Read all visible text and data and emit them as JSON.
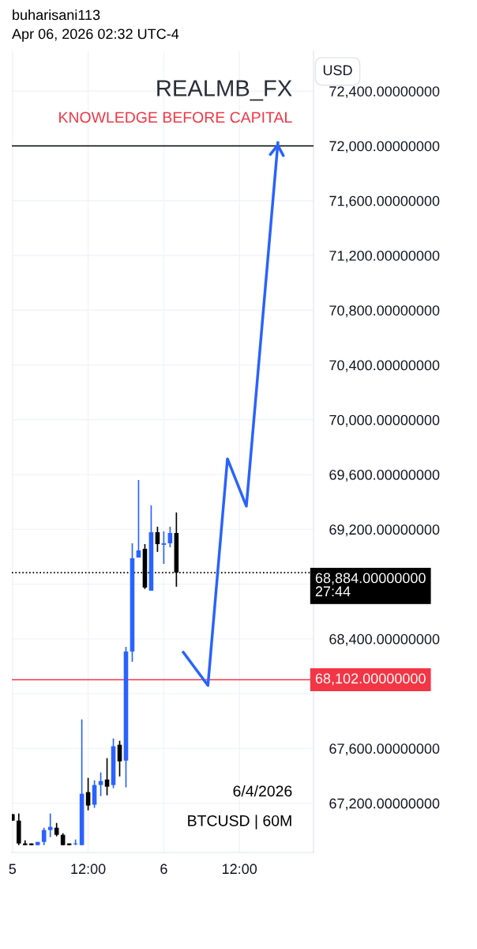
{
  "chart_data": {
    "type": "candlestick",
    "title": "REALMB_FX",
    "subtitle": "KNOWLEDGE BEFORE CAPITAL",
    "ylabel": "USD",
    "annotations": [
      "buharisani113",
      "Apr 06, 2026 02:32 UTC-4",
      "6/4/2026",
      "BTCUSD | 60M"
    ],
    "x": [
      "2026-04-05T00:00",
      "2026-04-05T01:00",
      "2026-04-05T02:00",
      "2026-04-05T03:00",
      "2026-04-05T04:00",
      "2026-04-05T05:00",
      "2026-04-05T06:00",
      "2026-04-05T07:00",
      "2026-04-05T08:00",
      "2026-04-05T09:00",
      "2026-04-05T10:00",
      "2026-04-05T11:00",
      "2026-04-05T12:00",
      "2026-04-05T13:00",
      "2026-04-05T14:00",
      "2026-04-05T15:00",
      "2026-04-05T16:00",
      "2026-04-05T17:00",
      "2026-04-05T18:00",
      "2026-04-05T19:00",
      "2026-04-05T20:00",
      "2026-04-05T21:00",
      "2026-04-05T22:00",
      "2026-04-05T23:00",
      "2026-04-06T00:00",
      "2026-04-06T01:00",
      "2026-04-06T02:00"
    ],
    "ohlc": [
      [
        67120,
        67120,
        67073,
        67073
      ],
      [
        67073,
        67125,
        66894,
        66906
      ],
      [
        66906,
        66929,
        66894,
        66894
      ],
      [
        66894,
        66906,
        66894,
        66906
      ],
      [
        66894,
        66917,
        66894,
        66917
      ],
      [
        66917,
        67021,
        66894,
        67004
      ],
      [
        67004,
        67125,
        66952,
        67027
      ],
      [
        67021,
        67056,
        66958,
        66969
      ],
      [
        66969,
        66981,
        66894,
        66894
      ],
      [
        66894,
        66906,
        66894,
        66906
      ],
      [
        66900,
        66935,
        66894,
        66906
      ],
      [
        66894,
        67812,
        66894,
        67269
      ],
      [
        67281,
        67385,
        67148,
        67183
      ],
      [
        67189,
        67367,
        67166,
        67333
      ],
      [
        67333,
        67425,
        67252,
        67362
      ],
      [
        67373,
        67529,
        67258,
        67321
      ],
      [
        67333,
        67673,
        67310,
        67616
      ],
      [
        67627,
        67656,
        67396,
        67506
      ],
      [
        67512,
        68342,
        67316,
        68308
      ],
      [
        68308,
        69098,
        68233,
        68989
      ],
      [
        68994,
        69560,
        68994,
        69046
      ],
      [
        69058,
        69092,
        68764,
        68775
      ],
      [
        68752,
        69375,
        68752,
        69179
      ],
      [
        69179,
        69219,
        69035,
        69092
      ],
      [
        69087,
        69185,
        68948,
        69098
      ],
      [
        69098,
        69219,
        69069,
        69173
      ],
      [
        69173,
        69323,
        68781,
        68884
      ]
    ],
    "colors": [
      "#000000",
      "#000000",
      "#000000",
      "#000000",
      "#2962ff",
      "#2962ff",
      "#2962ff",
      "#000000",
      "#000000",
      "#000000",
      "#2962ff",
      "#2962ff",
      "#000000",
      "#2962ff",
      "#2962ff",
      "#000000",
      "#2962ff",
      "#000000",
      "#2962ff",
      "#2962ff",
      "#2962ff",
      "#000000",
      "#2962ff",
      "#000000",
      "#2962ff",
      "#2962ff",
      "#000000"
    ],
    "series": [
      {
        "type": "line",
        "color": "#2962ff",
        "x": [
          "2026-04-06T03:06",
          "2026-04-06T07:00",
          "2026-04-06T10:06",
          "2026-04-06T13:06",
          "2026-04-06T18:06"
        ],
        "values": [
          68302,
          68060,
          69715,
          69369,
          72023
        ]
      }
    ],
    "xlim": [
      "2026-04-04T23:54",
      "2026-04-06T23:45"
    ],
    "xticks": [
      {
        "value": "2026-04-05T00:00",
        "label": "5"
      },
      {
        "value": "2026-04-05T12:00",
        "label": "12:00"
      },
      {
        "value": "2026-04-06T00:00",
        "label": "6"
      },
      {
        "value": "2026-04-06T12:00",
        "label": "12:00"
      }
    ],
    "ylim": [
      66840,
      72690
    ],
    "yticks": [
      {
        "value": 67200,
        "label": "67,200.00000000"
      },
      {
        "value": 67600,
        "label": "67,600.00000000"
      },
      {
        "value": 68000,
        "label": null
      },
      {
        "value": 68400,
        "label": "68,400.00000000"
      },
      {
        "value": 68800,
        "label": null
      },
      {
        "value": 69200,
        "label": "69,200.00000000"
      },
      {
        "value": 69600,
        "label": "69,600.00000000"
      },
      {
        "value": 70000,
        "label": "70,000.00000000"
      },
      {
        "value": 70400,
        "label": "70,400.00000000"
      },
      {
        "value": 70800,
        "label": "70,800.00000000"
      },
      {
        "value": 71200,
        "label": "71,200.00000000"
      },
      {
        "value": 71600,
        "label": "71,600.00000000"
      },
      {
        "value": 72000,
        "label": "72,000.00000000"
      },
      {
        "value": 72400,
        "label": "72,400.00000000"
      }
    ],
    "ref_lines": [
      {
        "axis": "y",
        "value": 72000,
        "color": "#000000",
        "line_style": "solid"
      },
      {
        "axis": "y",
        "value": 68884,
        "color": "#000000",
        "line_style": "dotted",
        "label": "68,884.00000000\n27:44"
      },
      {
        "axis": "y",
        "value": 68102,
        "color": "#f23645",
        "line_style": "solid",
        "label": "68,102.00000000"
      }
    ],
    "grid": true
  }
}
